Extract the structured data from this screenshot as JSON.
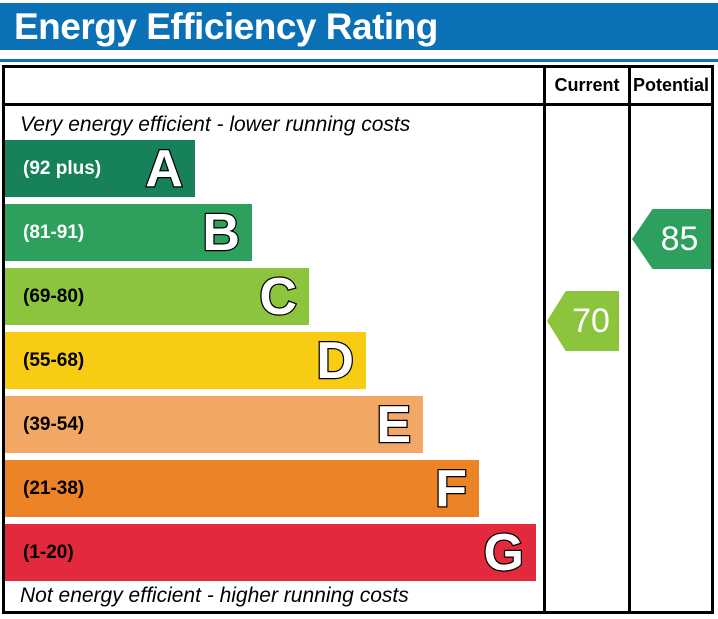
{
  "title": "Energy Efficiency Rating",
  "colors": {
    "header_bg": "#0b71b7",
    "header_text": "#ffffff",
    "border": "#000000",
    "background": "#ffffff"
  },
  "table": {
    "columns": [
      "Current",
      "Potential"
    ]
  },
  "top_note": "Very energy efficient - lower running costs",
  "bottom_note": "Not energy efficient - higher running costs",
  "chart_data": {
    "type": "bar",
    "title": "Energy Efficiency Rating",
    "bands": [
      {
        "letter": "A",
        "range_label": "(92 plus)",
        "score_range": [
          92,
          100
        ],
        "color": "#17815a",
        "label_color": "#ffffff",
        "width_pct": 35.3
      },
      {
        "letter": "B",
        "range_label": "(81-91)",
        "score_range": [
          81,
          91
        ],
        "color": "#2ca05c",
        "label_color": "#ffffff",
        "width_pct": 45.9
      },
      {
        "letter": "C",
        "range_label": "(69-80)",
        "score_range": [
          69,
          80
        ],
        "color": "#8cc43d",
        "label_color": "#000000",
        "width_pct": 56.5
      },
      {
        "letter": "D",
        "range_label": "(55-68)",
        "score_range": [
          55,
          68
        ],
        "color": "#f7cc13",
        "label_color": "#000000",
        "width_pct": 67.1
      },
      {
        "letter": "E",
        "range_label": "(39-54)",
        "score_range": [
          39,
          54
        ],
        "color": "#f3a765",
        "label_color": "#000000",
        "width_pct": 77.7
      },
      {
        "letter": "F",
        "range_label": "(21-38)",
        "score_range": [
          21,
          38
        ],
        "color": "#ed8327",
        "label_color": "#000000",
        "width_pct": 88.1
      },
      {
        "letter": "G",
        "range_label": "(1-20)",
        "score_range": [
          1,
          20
        ],
        "color": "#e32a3c",
        "label_color": "#000000",
        "width_pct": 98.7
      }
    ],
    "current": {
      "value": 70,
      "band": "C",
      "color": "#8cc43d"
    },
    "potential": {
      "value": 85,
      "band": "B",
      "color": "#2ca05c"
    },
    "legend_position": "right-columns",
    "grid": false
  }
}
